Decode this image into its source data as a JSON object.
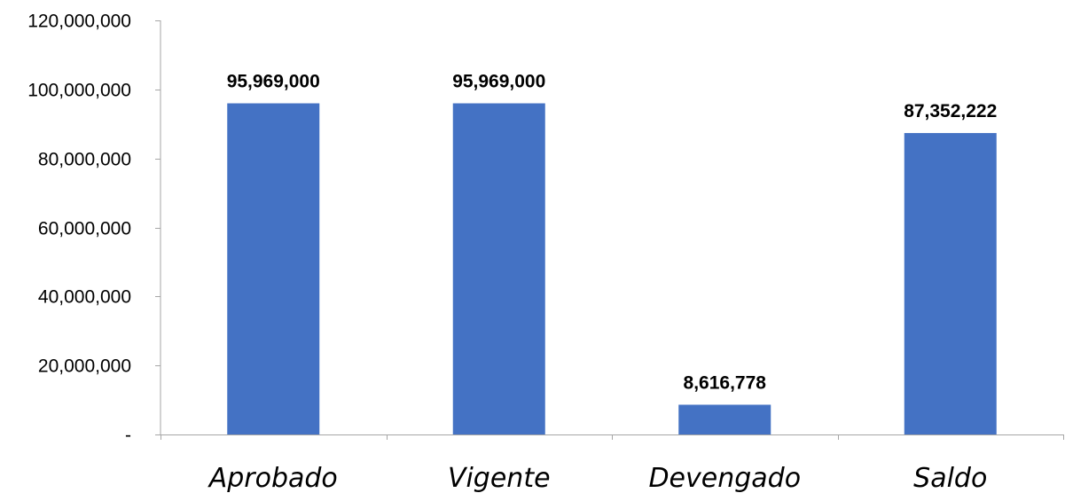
{
  "chart_data": {
    "type": "bar",
    "title": "",
    "xlabel": "",
    "ylabel": "",
    "categories": [
      "Aprobado",
      "Vigente",
      "Devengado",
      "Saldo"
    ],
    "values": [
      95969000,
      95969000,
      8616778,
      87352222
    ],
    "data_labels": [
      "95,969,000",
      "95,969,000",
      "8,616,778",
      "87,352,222"
    ],
    "ylim": [
      0,
      120000000
    ],
    "yticks": [
      0,
      20000000,
      40000000,
      60000000,
      80000000,
      100000000,
      120000000
    ],
    "ytick_labels": [
      "-",
      "20,000,000",
      "40,000,000",
      "60,000,000",
      "80,000,000",
      "100,000,000",
      "120,000,000"
    ],
    "grid": false,
    "legend": "none",
    "bar_color": "#4472C4",
    "axis_color": "#A6A6A6"
  }
}
